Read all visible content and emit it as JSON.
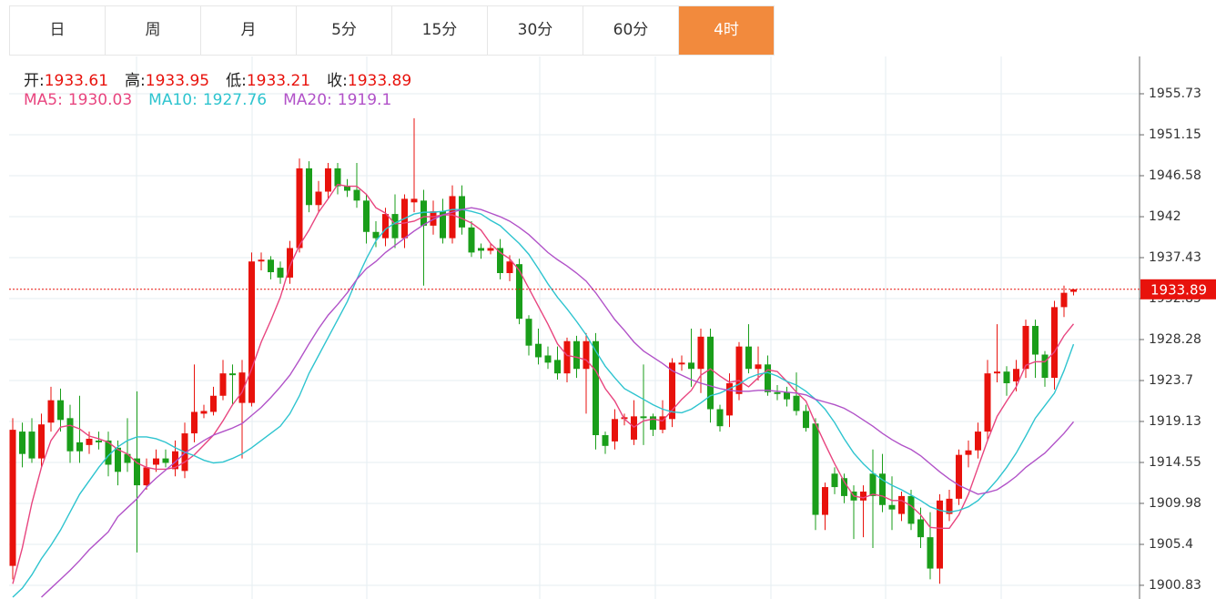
{
  "tabs": [
    "日",
    "周",
    "月",
    "5分",
    "15分",
    "30分",
    "60分",
    "4时"
  ],
  "selected_tab": 7,
  "chart_data": {
    "type": "candlestick",
    "ohlc_labels": [
      "开:",
      "高:",
      "低:",
      "收:"
    ],
    "up_color": "#e8120c",
    "down_color": "#1a9e1a",
    "ylim": [
      1899.3,
      1959.9
    ],
    "yticks": [
      1900.83,
      1905.4,
      1909.98,
      1914.55,
      1919.13,
      1923.7,
      1928.28,
      1932.85,
      1937.43,
      1942.0,
      1946.58,
      1951.15,
      1955.73
    ],
    "grid": true,
    "open": [
      1903,
      1918,
      1918,
      1915,
      1919,
      1921.5,
      1919.5,
      1916.8,
      1916.5,
      1917,
      1917,
      1916.2,
      1915.5,
      1915,
      1912,
      1914.3,
      1915,
      1913.8,
      1913.6,
      1917.8,
      1920,
      1920.2,
      1922,
      1924.5,
      1921.2,
      1921.2,
      1937,
      1937.2,
      1936.3,
      1935.2,
      1938.5,
      1947.4,
      1943.3,
      1944.8,
      1947.4,
      1945.4,
      1945,
      1943.8,
      1940.3,
      1939.6,
      1942.3,
      1939.6,
      1943.6,
      1943.8,
      1941,
      1942.6,
      1939.6,
      1944.3,
      1940.8,
      1938.5,
      1938.2,
      1938.5,
      1935.7,
      1936.7,
      1930.6,
      1927.8,
      1926.5,
      1926,
      1924.5,
      1928.1,
      1925,
      1928.1,
      1917.6,
      1916.9,
      1919.4,
      1917.1,
      1919.7,
      1919.7,
      1918.2,
      1919.4,
      1925.5,
      1925.7,
      1925,
      1928.6,
      1920.5,
      1919.8,
      1922.2,
      1927.5,
      1925,
      1925.5,
      1922.4,
      1922.4,
      1922,
      1920.3,
      1918.9,
      1908.7,
      1913.3,
      1912.8,
      1911.3,
      1910.3,
      1913.3,
      1913.3,
      1909.8,
      1908.8,
      1910.8,
      1908.2,
      1906.2,
      1902.7,
      1908.8,
      1910.5,
      1915.4,
      1915.9,
      1918,
      1924.5,
      1924.7,
      1923.6,
      1925,
      1929.8,
      1926.6,
      1924,
      1931.9,
      1933.61
    ],
    "high": [
      1919.5,
      1919,
      1919.5,
      1920,
      1923,
      1922.8,
      1921,
      1922,
      1918,
      1918,
      1918,
      1917,
      1919.5,
      1922.5,
      1915,
      1916,
      1916,
      1917,
      1919,
      1925.5,
      1921,
      1923,
      1926,
      1925.5,
      1926,
      1938,
      1938,
      1937.6,
      1937,
      1939.3,
      1948.5,
      1948.2,
      1946,
      1948,
      1948,
      1946.2,
      1948,
      1944.5,
      1941.5,
      1943,
      1944.5,
      1944.5,
      1953,
      1945,
      1943.8,
      1944,
      1945.5,
      1945.5,
      1941.5,
      1939,
      1939,
      1939.5,
      1937.7,
      1937.3,
      1931,
      1929.5,
      1927.5,
      1927.5,
      1928.5,
      1928.7,
      1929,
      1929,
      1918,
      1920.5,
      1920,
      1921.5,
      1925.5,
      1920,
      1921.5,
      1926.2,
      1926.5,
      1929.5,
      1929.5,
      1929.5,
      1921,
      1924.5,
      1928,
      1930,
      1927.5,
      1926.5,
      1923.2,
      1923,
      1924.6,
      1921,
      1919.5,
      1912.3,
      1914,
      1913.3,
      1912,
      1912,
      1916,
      1915.5,
      1913,
      1911.3,
      1911.5,
      1909.5,
      1909,
      1911,
      1911.5,
      1916,
      1917,
      1919,
      1926,
      1930,
      1925.3,
      1926,
      1930.5,
      1930.5,
      1927,
      1932.6,
      1934.3,
      1933.95
    ],
    "low": [
      1901.5,
      1914,
      1914.5,
      1914,
      1918,
      1918,
      1914.5,
      1914.5,
      1915.5,
      1916,
      1913,
      1912,
      1913.5,
      1904.5,
      1911.5,
      1913.5,
      1914,
      1913,
      1912.8,
      1916.8,
      1919.5,
      1919.8,
      1921.5,
      1921,
      1915,
      1920.8,
      1936,
      1935,
      1934.5,
      1934.5,
      1938,
      1942.5,
      1942.5,
      1944,
      1944.5,
      1944.2,
      1943,
      1939,
      1938.6,
      1938.7,
      1938.5,
      1938.5,
      1942.5,
      1934.3,
      1940,
      1939,
      1939,
      1940,
      1937.5,
      1937.3,
      1937.8,
      1935,
      1934.8,
      1930,
      1926.5,
      1925.5,
      1925,
      1923.8,
      1923.5,
      1924,
      1920,
      1916,
      1915.5,
      1916,
      1918.7,
      1916.5,
      1916.5,
      1917.5,
      1917.8,
      1918.5,
      1924.8,
      1923,
      1922.3,
      1919,
      1918,
      1918.5,
      1921.5,
      1924.5,
      1923.7,
      1922,
      1921.5,
      1920.8,
      1919.8,
      1918,
      1907,
      1907,
      1911,
      1910,
      1906,
      1906.2,
      1905,
      1909,
      1907,
      1908,
      1907,
      1905,
      1901.5,
      1901,
      1908,
      1909.8,
      1914,
      1915,
      1917,
      1923.5,
      1922,
      1922.5,
      1924,
      1924,
      1923,
      1922.7,
      1930.8,
      1933.21
    ],
    "close": [
      1918.2,
      1915.5,
      1915,
      1918.8,
      1921.5,
      1919.3,
      1915.8,
      1915.8,
      1917.2,
      1916.8,
      1914.3,
      1913.5,
      1914.5,
      1912,
      1914,
      1915,
      1914.5,
      1915.8,
      1917.8,
      1920.2,
      1920.3,
      1922,
      1924.5,
      1924.3,
      1924.6,
      1937,
      1937.2,
      1935.8,
      1935.2,
      1938.5,
      1947.4,
      1943.3,
      1944.8,
      1947.4,
      1945.4,
      1944.9,
      1943.8,
      1940.3,
      1939.6,
      1942.3,
      1939.6,
      1944,
      1944,
      1941,
      1942.6,
      1939.6,
      1944.3,
      1940.8,
      1938,
      1938.2,
      1938.5,
      1935.7,
      1937,
      1930.6,
      1927.6,
      1926.3,
      1925.7,
      1924.5,
      1928.1,
      1925,
      1928.1,
      1917.6,
      1916.4,
      1919.4,
      1919.6,
      1919.7,
      1919.5,
      1918.2,
      1919.7,
      1925.7,
      1925.7,
      1925,
      1928.6,
      1920.5,
      1918.6,
      1923.4,
      1927.5,
      1925,
      1925.5,
      1922.4,
      1922.2,
      1921.6,
      1920.3,
      1918.4,
      1908.7,
      1911.8,
      1911.8,
      1910.8,
      1910.3,
      1911.3,
      1910.8,
      1909.8,
      1909.3,
      1910.8,
      1907.7,
      1906.2,
      1902.7,
      1910.3,
      1910.5,
      1915.4,
      1915.9,
      1918,
      1924.5,
      1924.7,
      1923.4,
      1925,
      1929.8,
      1926.6,
      1924,
      1931.9,
      1933.5,
      1933.89
    ],
    "series": [
      {
        "name": "MA5:",
        "color": "#e8457f",
        "values": [
          1901,
          1905,
          1910,
          1914,
          1917,
          1918.5,
          1918.7,
          1918.3,
          1917.5,
          1917.2,
          1916.8,
          1916,
          1915.5,
          1914.5,
          1914,
          1913.8,
          1913.8,
          1914,
          1914.6,
          1915.4,
          1916.5,
          1917.6,
          1919.2,
          1921,
          1922.4,
          1925,
          1928,
          1930.4,
          1933,
          1936.5,
          1938.8,
          1940.5,
          1942.5,
          1944,
          1945.6,
          1945.4,
          1945.4,
          1944.5,
          1943,
          1942.4,
          1941.2,
          1941.3,
          1941.5,
          1942,
          1942,
          1942.2,
          1942.2,
          1941.8,
          1941.3,
          1940.5,
          1939,
          1938,
          1937.3,
          1936,
          1934,
          1932,
          1930,
          1927.8,
          1926.5,
          1926.3,
          1926,
          1924.8,
          1922.8,
          1921.4,
          1919.4,
          1918.5,
          1919.2,
          1919.4,
          1919.2,
          1920.4,
          1921.6,
          1922.6,
          1924.3,
          1925,
          1924.2,
          1923.5,
          1923.7,
          1923,
          1924,
          1924.9,
          1924.7,
          1923.6,
          1922.4,
          1921.4,
          1918.9,
          1916.6,
          1914.4,
          1912.4,
          1910.8,
          1910.6,
          1911,
          1910.8,
          1910.3,
          1910.3,
          1909.7,
          1908.7,
          1907.3,
          1907.2,
          1907.2,
          1908.7,
          1911,
          1914,
          1917,
          1919.7,
          1921.4,
          1923,
          1925.4,
          1925.8,
          1925.8,
          1926.9,
          1928.7,
          1930.03
        ]
      },
      {
        "name": "MA10:",
        "color": "#2ec4cf",
        "values": [
          1899.5,
          1900.5,
          1902,
          1903.8,
          1905.3,
          1907,
          1909,
          1911,
          1912.5,
          1914,
          1915.3,
          1916.3,
          1917,
          1917.4,
          1917.4,
          1917.2,
          1916.8,
          1916.2,
          1915.7,
          1915.3,
          1914.8,
          1914.5,
          1914.6,
          1915,
          1915.5,
          1916.2,
          1917,
          1917.8,
          1918.6,
          1920,
          1922,
          1924.5,
          1926.5,
          1928.5,
          1930.5,
          1932.5,
          1935,
          1937.3,
          1939.3,
          1940.6,
          1941.3,
          1941.8,
          1942.3,
          1942.5,
          1942.5,
          1942.6,
          1942.8,
          1942.8,
          1942.6,
          1942.3,
          1941.6,
          1941,
          1940,
          1939,
          1937.8,
          1936.2,
          1934.5,
          1933,
          1931.7,
          1930.3,
          1928.8,
          1927,
          1925.3,
          1924,
          1922.8,
          1922.2,
          1921.6,
          1921,
          1920.5,
          1920.2,
          1920.1,
          1920.5,
          1921.2,
          1922,
          1922.3,
          1922.8,
          1923.3,
          1924,
          1924.4,
          1924.6,
          1924.2,
          1923.6,
          1923.2,
          1922.5,
          1921.6,
          1920.5,
          1919,
          1917.2,
          1915.6,
          1914.4,
          1913.4,
          1912.6,
          1912,
          1911.5,
          1910.9,
          1910.3,
          1909.6,
          1909.2,
          1909,
          1909.2,
          1909.6,
          1910.3,
          1911.4,
          1912.6,
          1914,
          1915.6,
          1917.5,
          1919.5,
          1920.9,
          1922.3,
          1924.8,
          1927.76
        ]
      },
      {
        "name": "MA20:",
        "color": "#b152c8",
        "values": [
          null,
          null,
          null,
          1899.5,
          1900.5,
          1901.5,
          1902.5,
          1903.6,
          1904.8,
          1905.8,
          1906.8,
          1908.5,
          1909.5,
          1910.5,
          1911.8,
          1912.8,
          1913.7,
          1914.6,
          1915.6,
          1916.3,
          1917,
          1917.6,
          1918,
          1918.4,
          1918.9,
          1919.8,
          1920.7,
          1921.8,
          1923,
          1924.3,
          1926,
          1927.8,
          1929.5,
          1931,
          1932.2,
          1933.5,
          1935,
          1936.2,
          1937,
          1938,
          1938.8,
          1939.6,
          1940.4,
          1941.1,
          1941.7,
          1942.2,
          1942.5,
          1942.8,
          1943,
          1942.8,
          1942.4,
          1942,
          1941.5,
          1940.8,
          1940,
          1939,
          1938,
          1937.2,
          1936.5,
          1935.7,
          1934.8,
          1933.5,
          1932,
          1930.5,
          1929.3,
          1928,
          1927,
          1926.3,
          1925.6,
          1924.8,
          1924.3,
          1923.8,
          1923.4,
          1923.1,
          1922.8,
          1922.6,
          1922.5,
          1922.5,
          1922.6,
          1922.6,
          1922.5,
          1922.4,
          1922.3,
          1922.1,
          1921.6,
          1921.3,
          1921,
          1920.6,
          1920,
          1919.3,
          1918.6,
          1917.8,
          1917.1,
          1916.5,
          1916,
          1915.3,
          1914.4,
          1913.5,
          1912.7,
          1912,
          1911.5,
          1911,
          1911.2,
          1911.5,
          1912.2,
          1913,
          1914,
          1914.8,
          1915.6,
          1916.7,
          1917.8,
          1919.1
        ]
      }
    ]
  }
}
